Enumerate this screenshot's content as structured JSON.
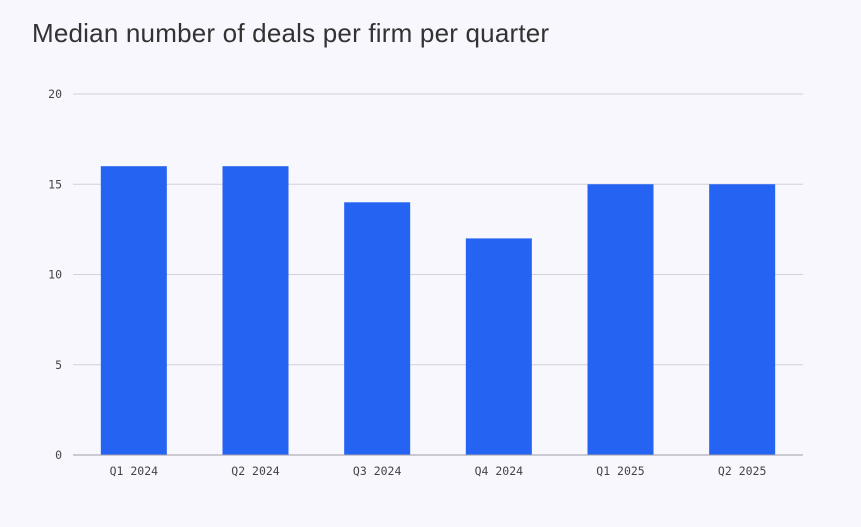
{
  "chart_data": {
    "type": "bar",
    "title": "Median number of deals per firm per quarter",
    "xlabel": "",
    "ylabel": "",
    "categories": [
      "Q1 2024",
      "Q2 2024",
      "Q3 2024",
      "Q4 2024",
      "Q1 2025",
      "Q2 2025"
    ],
    "values": [
      16,
      16,
      14,
      12,
      15,
      15
    ],
    "ylim": [
      0,
      20
    ],
    "yticks": [
      0,
      5,
      10,
      15,
      20
    ],
    "ytick_labels": [
      "0",
      "5",
      "10",
      "15",
      "20"
    ],
    "grid": true,
    "legend": "none",
    "bar_color": "#2563f2",
    "grid_color": "#d2d2d8",
    "axis_color": "#9e9ea8",
    "background_color": "#f8f7fe"
  }
}
